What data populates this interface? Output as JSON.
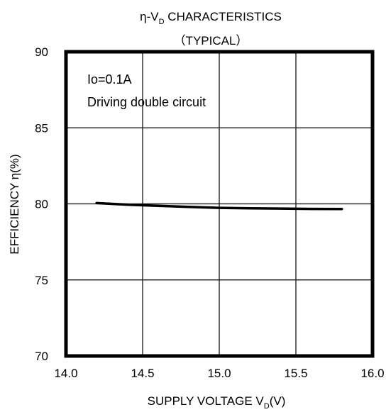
{
  "chart_data": {
    "type": "line",
    "title_line1": {
      "main": "η-V",
      "sub": "D",
      "rest": " CHARACTERISTICS"
    },
    "title_line2": "（TYPICAL）",
    "xlabel": {
      "main": "SUPPLY  VOLTAGE  V",
      "sub": "D",
      "rest": "(V)"
    },
    "ylabel": "EFFICIENCY  η(%)",
    "xlim": [
      14.0,
      16.0
    ],
    "ylim": [
      70,
      90
    ],
    "xticks": [
      14.0,
      14.5,
      15.0,
      15.5,
      16.0
    ],
    "xtick_labels": [
      "14.0",
      "14.5",
      "15.0",
      "15.5",
      "16.0"
    ],
    "yticks": [
      70,
      75,
      80,
      85,
      90
    ],
    "ytick_labels": [
      "70",
      "75",
      "80",
      "85",
      "90"
    ],
    "grid": true,
    "annotations": [
      "Io=0.1A",
      "Driving double circuit"
    ],
    "series": [
      {
        "x": [
          14.2,
          14.4,
          14.6,
          14.8,
          15.0,
          15.2,
          15.4,
          15.6,
          15.8
        ],
        "y": [
          80.05,
          79.95,
          79.87,
          79.8,
          79.74,
          79.71,
          79.69,
          79.67,
          79.66
        ]
      }
    ]
  }
}
